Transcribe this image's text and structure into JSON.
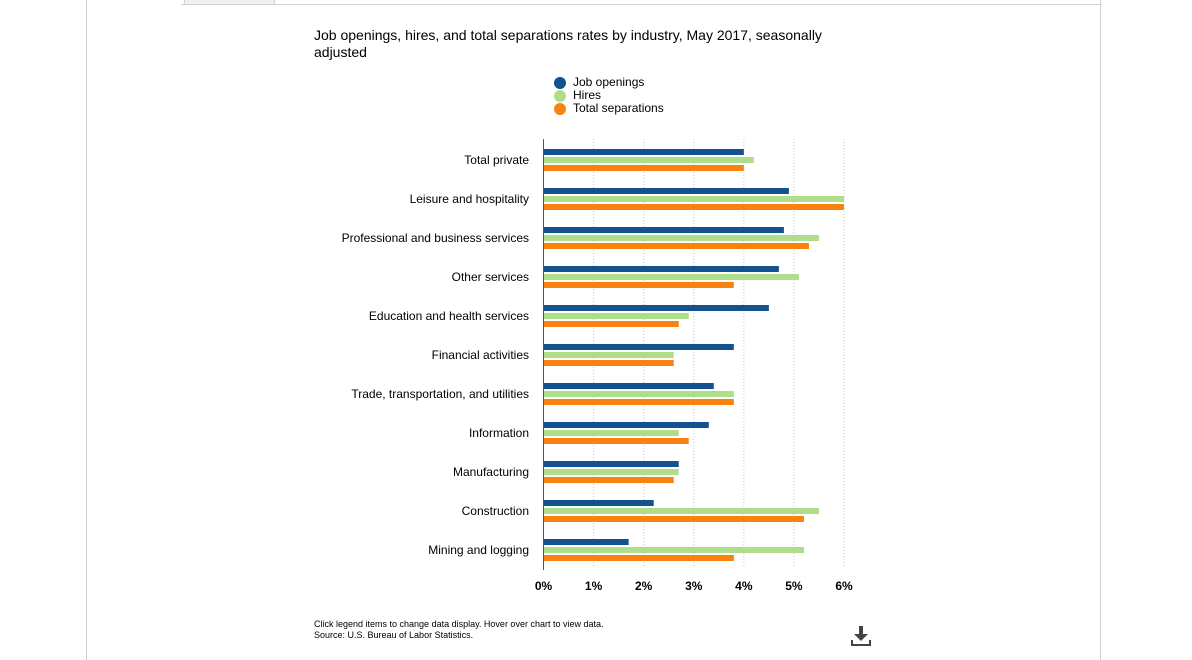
{
  "chart_title": "Job openings, hires, and total separations rates by industry, May 2017, seasonally adjusted",
  "footer": {
    "note": "Click legend items to change data display. Hover over chart to view data.",
    "source": "Source: U.S. Bureau of Labor Statistics."
  },
  "download_icon": "download-icon",
  "chart_data": {
    "type": "bar",
    "orientation": "horizontal",
    "title": "Job openings, hires, and total separations rates by industry, May 2017, seasonally adjusted",
    "categories": [
      "Total private",
      "Leisure and hospitality",
      "Professional and business services",
      "Other services",
      "Education and health services",
      "Financial activities",
      "Trade, transportation, and utilities",
      "Information",
      "Manufacturing",
      "Construction",
      "Mining and logging"
    ],
    "series": [
      {
        "name": "Job openings",
        "color": "#15508f",
        "values": [
          4.0,
          4.9,
          4.8,
          4.7,
          4.5,
          3.8,
          3.4,
          3.3,
          2.7,
          2.2,
          1.7
        ]
      },
      {
        "name": "Hires",
        "color": "#b0dd8a",
        "values": [
          4.2,
          6.0,
          5.5,
          5.1,
          2.9,
          2.6,
          3.8,
          2.7,
          2.7,
          5.5,
          5.2
        ]
      },
      {
        "name": "Total separations",
        "color": "#f7820f",
        "values": [
          4.0,
          6.0,
          5.3,
          3.8,
          2.7,
          2.6,
          3.8,
          2.9,
          2.6,
          5.2,
          3.8
        ]
      }
    ],
    "xlim": [
      0,
      6
    ],
    "xticks": [
      "0%",
      "1%",
      "2%",
      "3%",
      "4%",
      "5%",
      "6%"
    ],
    "grid": true,
    "legend_position": "top"
  }
}
